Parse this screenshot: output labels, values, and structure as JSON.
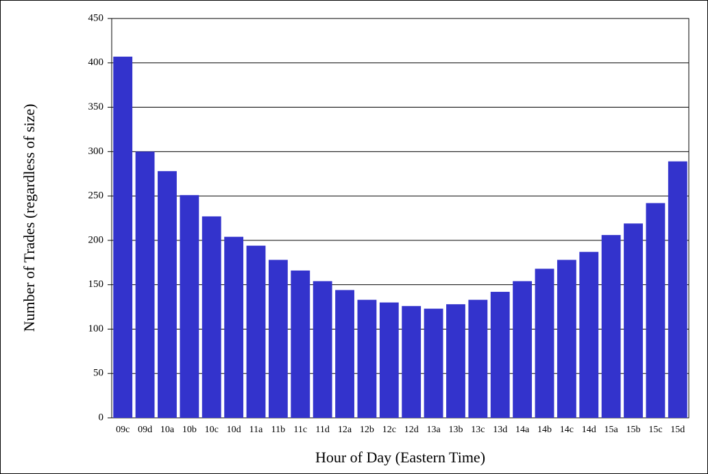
{
  "chart_data": {
    "type": "bar",
    "x_label": "Hour of Day (Eastern Time)",
    "y_label": "Number of Trades (regardless of size)",
    "categories": [
      "09c",
      "09d",
      "10a",
      "10b",
      "10c",
      "10d",
      "11a",
      "11b",
      "11c",
      "11d",
      "12a",
      "12b",
      "12c",
      "12d",
      "13a",
      "13b",
      "13c",
      "13d",
      "14a",
      "14b",
      "14c",
      "14d",
      "15a",
      "15b",
      "15c",
      "15d"
    ],
    "values": [
      407,
      300,
      278,
      251,
      227,
      204,
      194,
      178,
      166,
      154,
      144,
      133,
      130,
      126,
      123,
      128,
      133,
      142,
      154,
      168,
      178,
      187,
      206,
      219,
      242,
      289
    ],
    "color": "#3333cc",
    "ylim": [
      0,
      450
    ],
    "yticks": [
      0,
      50,
      100,
      150,
      200,
      250,
      300,
      350,
      400,
      450
    ],
    "grid": true
  }
}
